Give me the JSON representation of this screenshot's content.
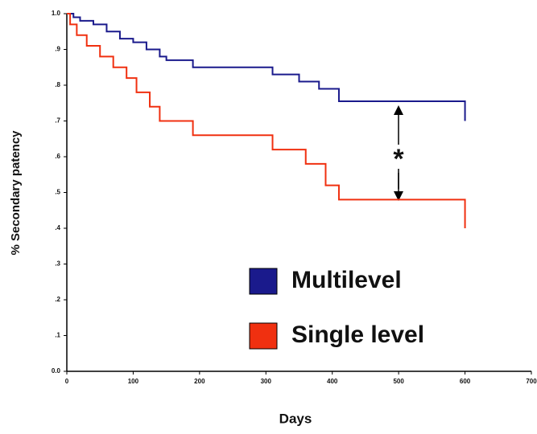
{
  "chart_data": {
    "type": "step-line",
    "y_label": "% Secondary patency",
    "x_label": "Days",
    "annotation": "*",
    "xlim": [
      0,
      700
    ],
    "xticks": [
      0,
      100,
      200,
      300,
      400,
      500,
      600,
      700
    ],
    "ylim": [
      0,
      1
    ],
    "yticks": [
      {
        "value": 0,
        "label": "0.0"
      },
      {
        "value": 0.1,
        "label": ".1"
      },
      {
        "value": 0.2,
        "label": ".2"
      },
      {
        "value": 0.3,
        "label": ".3"
      },
      {
        "value": 0.4,
        "label": ".4"
      },
      {
        "value": 0.5,
        "label": ".5"
      },
      {
        "value": 0.6,
        "label": ".6"
      },
      {
        "value": 0.7,
        "label": ".7"
      },
      {
        "value": 0.8,
        "label": ".8"
      },
      {
        "value": 0.9,
        "label": ".9"
      },
      {
        "value": 1,
        "label": "1.0"
      }
    ],
    "legend": "lower right",
    "series": [
      {
        "name": "Multilevel",
        "color": "#1a1a8c",
        "x": [
          0,
          10,
          10,
          20,
          20,
          40,
          40,
          60,
          60,
          80,
          80,
          100,
          100,
          120,
          120,
          140,
          140,
          150,
          150,
          190,
          190,
          310,
          310,
          350,
          350,
          380,
          380,
          410,
          410,
          600,
          600
        ],
        "values": [
          1,
          1,
          0.99,
          0.99,
          0.98,
          0.98,
          0.97,
          0.97,
          0.95,
          0.95,
          0.93,
          0.93,
          0.92,
          0.92,
          0.9,
          0.9,
          0.88,
          0.88,
          0.87,
          0.87,
          0.85,
          0.85,
          0.83,
          0.83,
          0.81,
          0.81,
          0.79,
          0.79,
          0.755,
          0.755,
          0.7
        ]
      },
      {
        "name": "Single level",
        "color": "#f03010",
        "x": [
          0,
          5,
          5,
          15,
          15,
          30,
          30,
          50,
          50,
          70,
          70,
          90,
          90,
          105,
          105,
          125,
          125,
          140,
          140,
          190,
          190,
          310,
          310,
          360,
          360,
          390,
          390,
          410,
          410,
          600,
          600
        ],
        "values": [
          1,
          1,
          0.97,
          0.97,
          0.94,
          0.94,
          0.91,
          0.91,
          0.88,
          0.88,
          0.85,
          0.85,
          0.82,
          0.82,
          0.78,
          0.78,
          0.74,
          0.74,
          0.7,
          0.7,
          0.66,
          0.66,
          0.62,
          0.62,
          0.58,
          0.58,
          0.52,
          0.52,
          0.48,
          0.48,
          0.4
        ]
      }
    ]
  }
}
